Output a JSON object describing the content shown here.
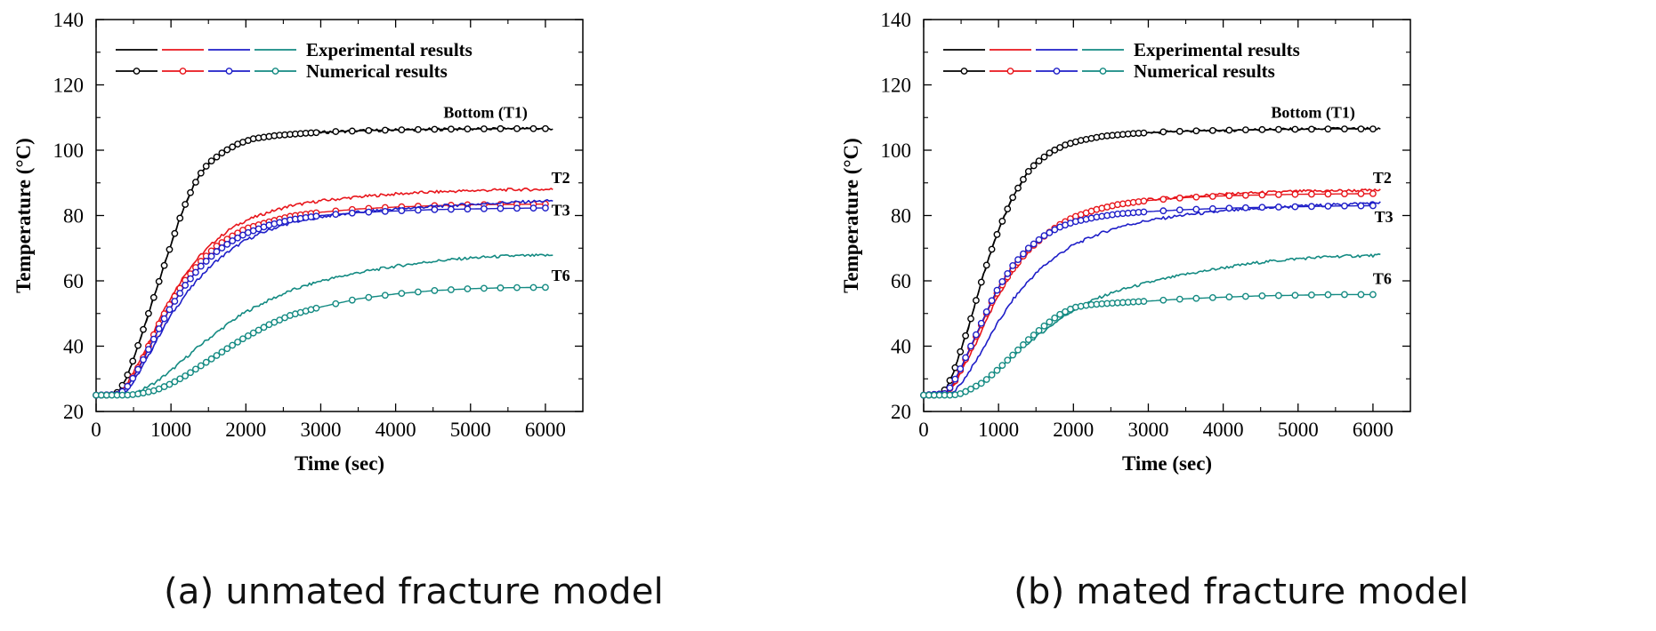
{
  "colors": {
    "T1": "#000000",
    "T2": "#e8151b",
    "T3": "#1e1ec8",
    "T6": "#138a82"
  },
  "chart_data": [
    {
      "type": "line",
      "caption": "(a) unmated fracture model",
      "xlabel": "Time (sec)",
      "ylabel": "Temperature (°C)",
      "xlim": [
        0,
        6500
      ],
      "ylim": [
        20,
        140
      ],
      "xticks": [
        0,
        1000,
        2000,
        3000,
        4000,
        5000,
        6000
      ],
      "yticks": [
        20,
        40,
        60,
        80,
        100,
        120,
        140
      ],
      "legend": {
        "position": "top-left",
        "experimental": "Experimental results",
        "numerical": "Numerical results"
      },
      "labels": [
        {
          "text": "Bottom (T1)",
          "x": 5200,
          "y": 110
        },
        {
          "text": "T2",
          "x": 6080,
          "y": 90
        },
        {
          "text": "T3",
          "x": 6080,
          "y": 80
        },
        {
          "text": "T6",
          "x": 6080,
          "y": 60
        }
      ],
      "series": [
        {
          "name": "T1",
          "kind": "experimental",
          "x": [
            0,
            200,
            300,
            400,
            500,
            600,
            700,
            800,
            900,
            1000,
            1100,
            1200,
            1300,
            1400,
            1500,
            1700,
            1900,
            2100,
            2400,
            2800,
            3200,
            3600,
            4000,
            4500,
            5000,
            5500,
            6100
          ],
          "y": [
            25,
            25,
            26,
            30,
            36,
            43,
            50,
            57,
            64,
            71,
            78,
            84,
            89,
            93,
            96,
            99.5,
            102,
            103.5,
            104.5,
            105.2,
            105.7,
            106,
            106.2,
            106.4,
            106.5,
            106.6,
            106.6
          ]
        },
        {
          "name": "T1",
          "kind": "numerical",
          "x": [
            0,
            200,
            300,
            400,
            500,
            600,
            700,
            800,
            900,
            1000,
            1100,
            1200,
            1300,
            1400,
            1500,
            1700,
            1900,
            2100,
            2400,
            2800,
            3200,
            3600,
            4000,
            4500,
            5000,
            5500,
            6000
          ],
          "y": [
            25,
            25,
            26,
            30,
            36,
            43,
            50,
            57,
            64,
            71,
            78,
            84,
            89,
            93,
            96,
            99.5,
            102,
            103.5,
            104.5,
            105.2,
            105.7,
            106,
            106.2,
            106.4,
            106.5,
            106.6,
            106.6
          ]
        },
        {
          "name": "T2",
          "kind": "experimental",
          "x": [
            0,
            300,
            400,
            500,
            600,
            700,
            800,
            900,
            1000,
            1200,
            1400,
            1600,
            1800,
            2000,
            2300,
            2600,
            3000,
            3500,
            4000,
            4500,
            5000,
            5500,
            6100
          ],
          "y": [
            25,
            25.5,
            28,
            32,
            36.5,
            41,
            46,
            51,
            55,
            62.5,
            68,
            72.5,
            76,
            78.5,
            81,
            83,
            84.5,
            85.7,
            86.6,
            87.2,
            87.6,
            87.9,
            88
          ]
        },
        {
          "name": "T2",
          "kind": "numerical",
          "x": [
            0,
            300,
            400,
            500,
            600,
            700,
            800,
            900,
            1000,
            1200,
            1400,
            1600,
            1800,
            2000,
            2300,
            2600,
            3000,
            3500,
            4000,
            4500,
            5000,
            5500,
            6000
          ],
          "y": [
            25,
            25.2,
            27,
            31,
            35,
            40,
            45,
            49.5,
            53.5,
            60.5,
            66,
            70.5,
            73.5,
            76,
            78,
            79.8,
            81,
            82,
            82.6,
            83,
            83.3,
            83.4,
            83.5
          ]
        },
        {
          "name": "T3",
          "kind": "experimental",
          "x": [
            0,
            300,
            400,
            500,
            600,
            700,
            800,
            900,
            1000,
            1200,
            1400,
            1600,
            1800,
            2000,
            2300,
            2600,
            3000,
            3500,
            4000,
            4500,
            5000,
            5500,
            6100
          ],
          "y": [
            25,
            25,
            26,
            29,
            33,
            37,
            41.5,
            45.5,
            49.5,
            56,
            61.5,
            66,
            69.5,
            72.5,
            75.5,
            77.8,
            79.6,
            81,
            82,
            82.8,
            83.4,
            84,
            84.5
          ]
        },
        {
          "name": "T3",
          "kind": "numerical",
          "x": [
            0,
            300,
            400,
            500,
            600,
            700,
            800,
            900,
            1000,
            1200,
            1400,
            1600,
            1800,
            2000,
            2300,
            2600,
            3000,
            3500,
            4000,
            4500,
            5000,
            5500,
            6000
          ],
          "y": [
            25,
            25.2,
            27,
            30.5,
            34.5,
            39,
            43.5,
            48,
            52,
            59,
            64.5,
            68.8,
            72,
            74.5,
            77,
            78.7,
            80,
            80.9,
            81.4,
            81.8,
            82,
            82.2,
            82.3
          ]
        },
        {
          "name": "T6",
          "kind": "experimental",
          "x": [
            0,
            400,
            500,
            600,
            800,
            1000,
            1200,
            1400,
            1600,
            1800,
            2000,
            2300,
            2600,
            3000,
            3500,
            4000,
            4500,
            5000,
            5500,
            6100
          ],
          "y": [
            25,
            25,
            25.5,
            26.5,
            29,
            32.5,
            36.5,
            40.5,
            44,
            47.5,
            50.5,
            54,
            57,
            60,
            62.5,
            64.5,
            66,
            67,
            67.6,
            67.8
          ]
        },
        {
          "name": "T6",
          "kind": "numerical",
          "x": [
            0,
            400,
            500,
            600,
            800,
            1000,
            1200,
            1400,
            1600,
            1800,
            2000,
            2300,
            2600,
            3000,
            3500,
            4000,
            4500,
            5000,
            5500,
            6000
          ],
          "y": [
            25,
            25,
            25.2,
            25.5,
            26.5,
            28.5,
            31,
            34,
            37,
            40,
            42.8,
            46.5,
            49.5,
            52,
            54.5,
            56,
            57,
            57.6,
            57.9,
            58
          ]
        }
      ]
    },
    {
      "type": "line",
      "caption": "(b) mated fracture model",
      "xlabel": "Time (sec)",
      "ylabel": "Temperature (°C)",
      "xlim": [
        0,
        6500
      ],
      "ylim": [
        20,
        140
      ],
      "xticks": [
        0,
        1000,
        2000,
        3000,
        4000,
        5000,
        6000
      ],
      "yticks": [
        20,
        40,
        60,
        80,
        100,
        120,
        140
      ],
      "legend": {
        "position": "top-left",
        "experimental": "Experimental results",
        "numerical": "Numerical results"
      },
      "labels": [
        {
          "text": "Bottom (T1)",
          "x": 5200,
          "y": 110
        },
        {
          "text": "T2",
          "x": 6000,
          "y": 90
        },
        {
          "text": "T3",
          "x": 6020,
          "y": 78
        },
        {
          "text": "T6",
          "x": 6000,
          "y": 59
        }
      ],
      "series": [
        {
          "name": "T1",
          "kind": "experimental",
          "x": [
            0,
            200,
            300,
            400,
            500,
            600,
            700,
            800,
            900,
            1000,
            1100,
            1200,
            1300,
            1400,
            1500,
            1700,
            1900,
            2100,
            2400,
            2800,
            3200,
            3600,
            4000,
            4500,
            5000,
            5500,
            6100
          ],
          "y": [
            25,
            25,
            27,
            32,
            39,
            46,
            54,
            62,
            69,
            75.5,
            81,
            86,
            90,
            93.5,
            96,
            99.5,
            101.7,
            103,
            104.3,
            105.1,
            105.6,
            105.9,
            106.1,
            106.3,
            106.4,
            106.5,
            106.5
          ]
        },
        {
          "name": "T1",
          "kind": "numerical",
          "x": [
            0,
            200,
            300,
            400,
            500,
            600,
            700,
            800,
            900,
            1000,
            1100,
            1200,
            1300,
            1400,
            1500,
            1700,
            1900,
            2100,
            2400,
            2800,
            3200,
            3600,
            4000,
            4500,
            5000,
            5500,
            6000
          ],
          "y": [
            25,
            25,
            27,
            32,
            39,
            46,
            54,
            62,
            69,
            75.5,
            81,
            86,
            90,
            93.5,
            96,
            99.5,
            101.7,
            103,
            104.3,
            105.1,
            105.6,
            105.9,
            106.1,
            106.3,
            106.4,
            106.5,
            106.5
          ]
        },
        {
          "name": "T2",
          "kind": "experimental",
          "x": [
            0,
            300,
            400,
            500,
            600,
            700,
            800,
            900,
            1000,
            1200,
            1400,
            1600,
            1800,
            2000,
            2300,
            2600,
            3000,
            3500,
            4000,
            4500,
            5000,
            5500,
            6100
          ],
          "y": [
            25,
            25.5,
            28,
            32,
            36.5,
            41,
            46,
            51,
            55.5,
            63,
            69,
            73.5,
            77,
            79.5,
            82,
            83.5,
            84.8,
            85.8,
            86.5,
            87,
            87.4,
            87.6,
            87.7
          ]
        },
        {
          "name": "T2",
          "kind": "numerical",
          "x": [
            0,
            300,
            400,
            500,
            600,
            700,
            800,
            900,
            1000,
            1200,
            1400,
            1600,
            1800,
            2000,
            2300,
            2600,
            3000,
            3500,
            4000,
            4500,
            5000,
            5500,
            6000
          ],
          "y": [
            25,
            25.5,
            28.5,
            33,
            38,
            43,
            48,
            53,
            57,
            64,
            69.5,
            73.5,
            77,
            79.5,
            81.8,
            83.4,
            84.6,
            85.5,
            86,
            86.3,
            86.5,
            86.6,
            86.7
          ]
        },
        {
          "name": "T3",
          "kind": "experimental",
          "x": [
            0,
            300,
            400,
            500,
            600,
            700,
            800,
            900,
            1000,
            1200,
            1400,
            1600,
            1800,
            2000,
            2300,
            2600,
            3000,
            3500,
            4000,
            4500,
            5000,
            5500,
            6100
          ],
          "y": [
            25,
            25,
            26,
            28.5,
            32,
            35.5,
            39.5,
            43.5,
            47.5,
            54.5,
            60,
            64.5,
            68,
            71,
            74,
            76.5,
            78.5,
            80.2,
            81.3,
            82.2,
            82.8,
            83.3,
            84
          ]
        },
        {
          "name": "T3",
          "kind": "numerical",
          "x": [
            0,
            300,
            400,
            500,
            600,
            700,
            800,
            900,
            1000,
            1200,
            1400,
            1600,
            1800,
            2000,
            2300,
            2600,
            3000,
            3500,
            4000,
            4500,
            5000,
            5500,
            6000
          ],
          "y": [
            25,
            25.5,
            29,
            33.5,
            38.5,
            43.5,
            48.5,
            53.5,
            58,
            65,
            70,
            73.7,
            76.3,
            78,
            79.5,
            80.5,
            81.2,
            81.8,
            82.2,
            82.5,
            82.7,
            82.9,
            83
          ]
        },
        {
          "name": "T6",
          "kind": "experimental",
          "x": [
            0,
            400,
            500,
            600,
            800,
            1000,
            1200,
            1400,
            1600,
            1800,
            2000,
            2300,
            2600,
            3000,
            3500,
            4000,
            4500,
            5000,
            5500,
            6100
          ],
          "y": [
            25,
            25,
            25.5,
            26.5,
            29.5,
            33,
            37,
            41,
            44.5,
            48,
            51,
            54.5,
            57,
            59.5,
            62,
            64,
            65.7,
            66.8,
            67.5,
            67.8
          ]
        },
        {
          "name": "T6",
          "kind": "numerical",
          "x": [
            0,
            400,
            500,
            600,
            800,
            1000,
            1200,
            1400,
            1600,
            1800,
            2000,
            2200,
            2400,
            2700,
            3000,
            3500,
            4000,
            4500,
            5000,
            5500,
            6000
          ],
          "y": [
            25,
            25,
            25.5,
            26.5,
            29,
            33,
            37.5,
            42,
            46,
            49.5,
            51.8,
            52.6,
            53,
            53.4,
            53.8,
            54.5,
            55,
            55.4,
            55.6,
            55.8,
            55.8
          ]
        }
      ]
    }
  ]
}
